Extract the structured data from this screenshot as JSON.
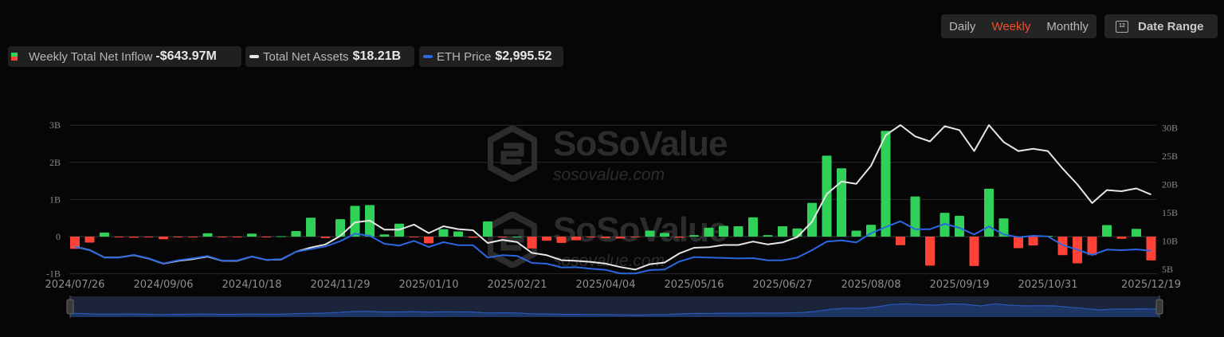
{
  "controls": {
    "granularity": [
      {
        "label": "Daily",
        "active": false
      },
      {
        "label": "Weekly",
        "active": true
      },
      {
        "label": "Monthly",
        "active": false
      }
    ],
    "date_range_label": "Date Range",
    "date_range_icon": "calendar-icon",
    "date_range_icon_text": "12"
  },
  "legend": {
    "inflow": {
      "label": "Weekly Total Net Inflow",
      "value": "-$643.97M"
    },
    "assets": {
      "label": "Total Net Assets",
      "value": "$18.21B"
    },
    "eth": {
      "label": "ETH Price",
      "value": "$2,995.52"
    }
  },
  "watermark": {
    "brand": "SoSoValue",
    "site": "sosovalue.com"
  },
  "colors": {
    "positive": "#30d158",
    "negative": "#ff4136",
    "assets": "#e6e6e6",
    "eth": "#2b67e0",
    "accent": "#f0502f"
  },
  "chart_data": {
    "type": "bar",
    "grid": true,
    "y_left": {
      "ticks": [
        "3B",
        "2B",
        "1B",
        "0",
        "-1B"
      ],
      "range": [
        -1,
        3
      ],
      "unit": "B USD"
    },
    "y_right": {
      "ticks": [
        "30B",
        "25B",
        "20B",
        "15B",
        "10B",
        "5B"
      ],
      "range": [
        5,
        30
      ],
      "unit": "B USD"
    },
    "x_ticks": [
      "2024/07/26",
      "2024/09/06",
      "2024/10/18",
      "2024/11/29",
      "2025/01/10",
      "2025/02/21",
      "2025/04/04",
      "2025/05/16",
      "2025/06/27",
      "2025/08/08",
      "2025/09/19",
      "2025/10/31",
      "2025/12/19"
    ],
    "dates": [
      "2024/07/26",
      "2024/08/02",
      "2024/08/09",
      "2024/08/16",
      "2024/08/23",
      "2024/08/30",
      "2024/09/06",
      "2024/09/13",
      "2024/09/20",
      "2024/09/27",
      "2024/10/04",
      "2024/10/11",
      "2024/10/18",
      "2024/10/25",
      "2024/11/01",
      "2024/11/08",
      "2024/11/15",
      "2024/11/22",
      "2024/11/29",
      "2024/12/06",
      "2024/12/13",
      "2024/12/20",
      "2024/12/27",
      "2025/01/03",
      "2025/01/10",
      "2025/01/17",
      "2025/01/24",
      "2025/01/31",
      "2025/02/07",
      "2025/02/14",
      "2025/02/21",
      "2025/02/28",
      "2025/03/07",
      "2025/03/14",
      "2025/03/21",
      "2025/03/28",
      "2025/04/04",
      "2025/04/11",
      "2025/04/18",
      "2025/04/25",
      "2025/05/02",
      "2025/05/09",
      "2025/05/16",
      "2025/05/23",
      "2025/05/30",
      "2025/06/06",
      "2025/06/13",
      "2025/06/20",
      "2025/06/27",
      "2025/07/04",
      "2025/07/11",
      "2025/07/18",
      "2025/07/25",
      "2025/08/01",
      "2025/08/08",
      "2025/08/15",
      "2025/08/22",
      "2025/08/29",
      "2025/09/05",
      "2025/09/12",
      "2025/09/19",
      "2025/09/26",
      "2025/10/03",
      "2025/10/10",
      "2025/10/17",
      "2025/10/24",
      "2025/10/31",
      "2025/11/07",
      "2025/11/14",
      "2025/11/21",
      "2025/11/28",
      "2025/12/05",
      "2025/12/12",
      "2025/12/19"
    ],
    "series": [
      {
        "name": "Weekly Total Net Inflow",
        "type": "bar",
        "axis": "left",
        "unit": "B USD",
        "values": [
          -0.33,
          -0.16,
          0.11,
          -0.01,
          -0.03,
          -0.01,
          -0.07,
          -0.01,
          -0.02,
          0.09,
          -0.02,
          -0.01,
          0.08,
          -0.02,
          0.01,
          0.15,
          0.51,
          -0.04,
          0.47,
          0.83,
          0.85,
          0.06,
          0.35,
          -0.02,
          -0.18,
          0.2,
          0.14,
          -0.03,
          0.41,
          -0.01,
          0.0,
          -0.32,
          -0.11,
          -0.17,
          -0.1,
          -0.01,
          -0.04,
          -0.05,
          -0.01,
          0.16,
          0.1,
          -0.03,
          0.04,
          0.24,
          0.29,
          0.28,
          0.52,
          0.04,
          0.28,
          0.22,
          0.91,
          2.18,
          1.84,
          0.16,
          0.32,
          2.85,
          -0.23,
          1.08,
          -0.78,
          0.64,
          0.56,
          -0.79,
          1.29,
          0.49,
          -0.31,
          -0.24,
          0.02,
          -0.5,
          -0.72,
          -0.5,
          0.31,
          -0.06,
          0.21,
          -0.64
        ]
      },
      {
        "name": "Total Net Assets",
        "type": "line",
        "axis": "right",
        "unit": "B USD",
        "values": [
          9.0,
          8.4,
          7.1,
          7.1,
          7.5,
          6.9,
          6.0,
          6.5,
          6.8,
          7.25,
          6.5,
          6.5,
          7.25,
          6.65,
          6.75,
          8.1,
          8.85,
          9.4,
          10.9,
          13.3,
          13.6,
          12.0,
          12.0,
          12.9,
          11.4,
          12.6,
          12.1,
          11.9,
          9.65,
          10.2,
          9.8,
          7.9,
          7.5,
          6.6,
          6.5,
          6.3,
          6.0,
          5.4,
          4.95,
          5.9,
          6.2,
          7.8,
          8.8,
          8.9,
          9.3,
          9.3,
          9.9,
          9.4,
          9.75,
          10.7,
          13.4,
          18.3,
          20.5,
          20.1,
          23.3,
          28.7,
          30.5,
          28.5,
          27.6,
          30.3,
          29.6,
          25.9,
          30.5,
          27.5,
          25.9,
          26.3,
          25.9,
          22.8,
          20.0,
          16.7,
          19.0,
          18.8,
          19.3,
          18.21
        ]
      },
      {
        "name": "ETH Price",
        "type": "line",
        "axis": "hidden",
        "unit": "USD",
        "values": [
          3226,
          3028,
          2599,
          2599,
          2751,
          2553,
          2258,
          2442,
          2553,
          2691,
          2415,
          2430,
          2659,
          2461,
          2507,
          2936,
          3088,
          3244,
          3549,
          3982,
          3857,
          3396,
          3290,
          3567,
          3212,
          3489,
          3318,
          3318,
          2599,
          2737,
          2691,
          2290,
          2244,
          2028,
          2043,
          1954,
          1890,
          1677,
          1677,
          1876,
          1908,
          2369,
          2627,
          2597,
          2582,
          2550,
          2566,
          2442,
          2442,
          2597,
          3028,
          3521,
          3595,
          3475,
          4009,
          4364,
          4700,
          4240,
          4240,
          4548,
          4318,
          3935,
          4396,
          3935,
          3779,
          3857,
          3826,
          3318,
          3060,
          2751,
          3060,
          3030,
          3075,
          2995.52
        ]
      }
    ]
  }
}
